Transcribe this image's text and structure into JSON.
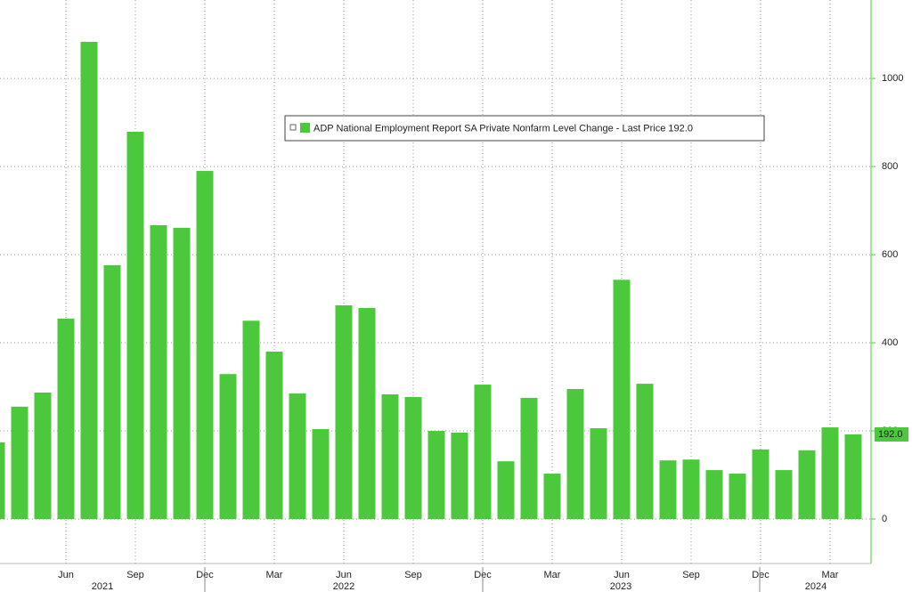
{
  "chart_data": {
    "type": "bar",
    "categories": [
      null,
      null,
      null,
      "Jun",
      null,
      null,
      "Sep",
      null,
      null,
      "Dec",
      null,
      null,
      "Mar",
      null,
      null,
      "Jun",
      null,
      null,
      "Sep",
      null,
      null,
      "Dec",
      null,
      null,
      "Mar",
      null,
      null,
      "Jun",
      null,
      null,
      "Sep",
      null,
      null,
      "Dec",
      null,
      null,
      "Mar",
      null
    ],
    "years": [
      "2021",
      "2022",
      "2023",
      "2024"
    ],
    "series": [
      {
        "name": "ADP National Employment Report SA Private Nonfarm Level Change - Last Price 192.0",
        "color": "#4cc83c",
        "values": [
          174,
          255,
          287,
          455,
          1083,
          576,
          879,
          667,
          661,
          790,
          329,
          450,
          380,
          285,
          204,
          485,
          479,
          283,
          277,
          200,
          196,
          305,
          131,
          275,
          103,
          295,
          206,
          543,
          307,
          133,
          135,
          111,
          103,
          158,
          111,
          156,
          208,
          192
        ]
      }
    ],
    "last_value_label": "192.0",
    "ylim": [
      -101,
      1178
    ],
    "yticks": [
      0,
      200,
      400,
      600,
      800,
      1000
    ],
    "grid": true
  }
}
